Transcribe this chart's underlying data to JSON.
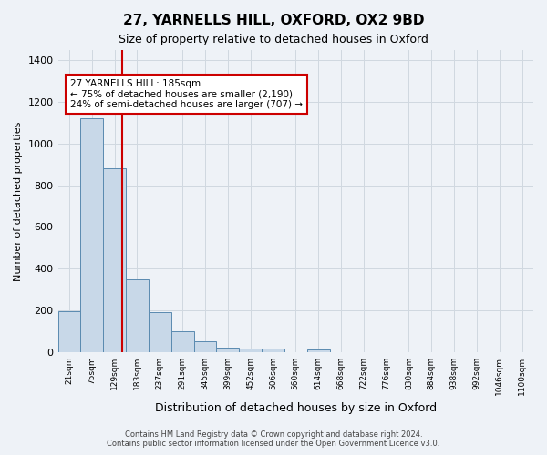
{
  "title": "27, YARNELLS HILL, OXFORD, OX2 9BD",
  "subtitle": "Size of property relative to detached houses in Oxford",
  "xlabel": "Distribution of detached houses by size in Oxford",
  "ylabel": "Number of detached properties",
  "footer_line1": "Contains HM Land Registry data © Crown copyright and database right 2024.",
  "footer_line2": "Contains public sector information licensed under the Open Government Licence v3.0.",
  "bin_labels": [
    "21sqm",
    "75sqm",
    "129sqm",
    "183sqm",
    "237sqm",
    "291sqm",
    "345sqm",
    "399sqm",
    "452sqm",
    "506sqm",
    "560sqm",
    "614sqm",
    "668sqm",
    "722sqm",
    "776sqm",
    "830sqm",
    "884sqm",
    "938sqm",
    "992sqm",
    "1046sqm",
    "1100sqm"
  ],
  "bar_values": [
    195,
    1120,
    880,
    350,
    190,
    100,
    52,
    22,
    18,
    18,
    0,
    12,
    0,
    0,
    0,
    0,
    0,
    0,
    0,
    0,
    0
  ],
  "bar_color": "#c8d8e8",
  "bar_edge_color": "#5a8ab0",
  "grid_color": "#d0d8e0",
  "background_color": "#eef2f7",
  "annotation_line1": "27 YARNELLS HILL: 185sqm",
  "annotation_line2": "← 75% of detached houses are smaller (2,190)",
  "annotation_line3": "24% of semi-detached houses are larger (707) →",
  "annotation_box_color": "#ffffff",
  "annotation_border_color": "#cc0000",
  "red_line_x": 2.85,
  "ylim": [
    0,
    1450
  ],
  "yticks": [
    0,
    200,
    400,
    600,
    800,
    1000,
    1200,
    1400
  ]
}
